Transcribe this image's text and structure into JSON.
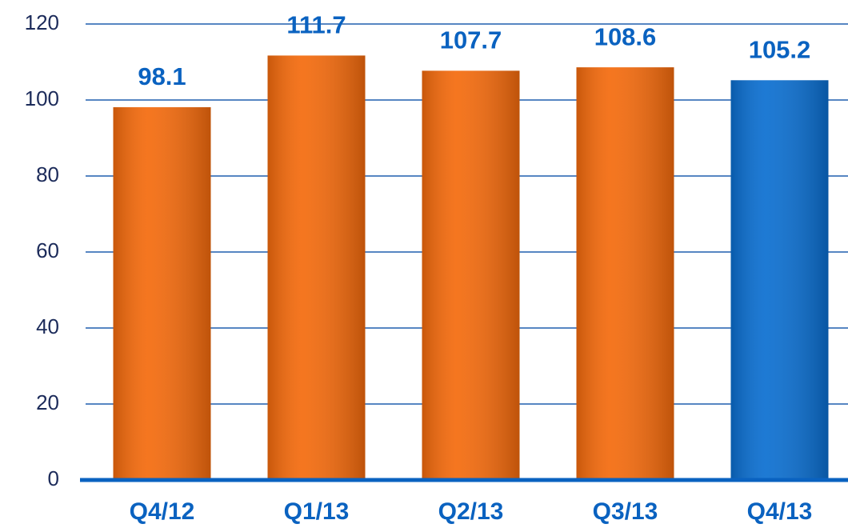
{
  "chart_data": {
    "type": "bar",
    "categories": [
      "Q4/12",
      "Q1/13",
      "Q2/13",
      "Q3/13",
      "Q4/13"
    ],
    "values": [
      98.1,
      111.7,
      107.7,
      108.6,
      105.2
    ],
    "colors": [
      "#f46a0c",
      "#f46a0c",
      "#f46a0c",
      "#f46a0c",
      "#0a6ed0"
    ],
    "ylim": [
      0,
      120
    ],
    "yticks": [
      0,
      20,
      40,
      60,
      80,
      100,
      120
    ],
    "grid": true
  }
}
